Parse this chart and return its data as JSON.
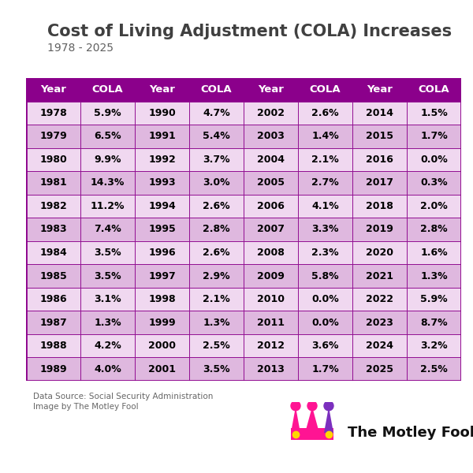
{
  "title": "Cost of Living Adjustment (COLA) Increases",
  "subtitle": "1978 - 2025",
  "data": [
    [
      "1978",
      "5.9%",
      "1990",
      "4.7%",
      "2002",
      "2.6%",
      "2014",
      "1.5%"
    ],
    [
      "1979",
      "6.5%",
      "1991",
      "5.4%",
      "2003",
      "1.4%",
      "2015",
      "1.7%"
    ],
    [
      "1980",
      "9.9%",
      "1992",
      "3.7%",
      "2004",
      "2.1%",
      "2016",
      "0.0%"
    ],
    [
      "1981",
      "14.3%",
      "1993",
      "3.0%",
      "2005",
      "2.7%",
      "2017",
      "0.3%"
    ],
    [
      "1982",
      "11.2%",
      "1994",
      "2.6%",
      "2006",
      "4.1%",
      "2018",
      "2.0%"
    ],
    [
      "1983",
      "7.4%",
      "1995",
      "2.8%",
      "2007",
      "3.3%",
      "2019",
      "2.8%"
    ],
    [
      "1984",
      "3.5%",
      "1996",
      "2.6%",
      "2008",
      "2.3%",
      "2020",
      "1.6%"
    ],
    [
      "1985",
      "3.5%",
      "1997",
      "2.9%",
      "2009",
      "5.8%",
      "2021",
      "1.3%"
    ],
    [
      "1986",
      "3.1%",
      "1998",
      "2.1%",
      "2010",
      "0.0%",
      "2022",
      "5.9%"
    ],
    [
      "1987",
      "1.3%",
      "1999",
      "1.3%",
      "2011",
      "0.0%",
      "2023",
      "8.7%"
    ],
    [
      "1988",
      "4.2%",
      "2000",
      "2.5%",
      "2012",
      "3.6%",
      "2024",
      "3.2%"
    ],
    [
      "1989",
      "4.0%",
      "2001",
      "3.5%",
      "2013",
      "1.7%",
      "2025",
      "2.5%"
    ]
  ],
  "header": [
    "Year",
    "COLA",
    "Year",
    "COLA",
    "Year",
    "COLA",
    "Year",
    "COLA"
  ],
  "header_bg": "#8B008B",
  "header_text_color": "#FFFFFF",
  "row_bg_odd": "#F0D8F0",
  "row_bg_even": "#DFB8DF",
  "border_color": "#8B008B",
  "text_color": "#000000",
  "title_color": "#404040",
  "subtitle_color": "#606060",
  "source_text_line1": "Data Source: Social Security Administration",
  "source_text_line2": "Image by The Motley Fool",
  "accent_line_color": "#7B4FA0",
  "bg_color": "#FFFFFF",
  "title_fontsize": 15,
  "subtitle_fontsize": 10,
  "cell_fontsize": 9,
  "header_fontsize": 9.5
}
